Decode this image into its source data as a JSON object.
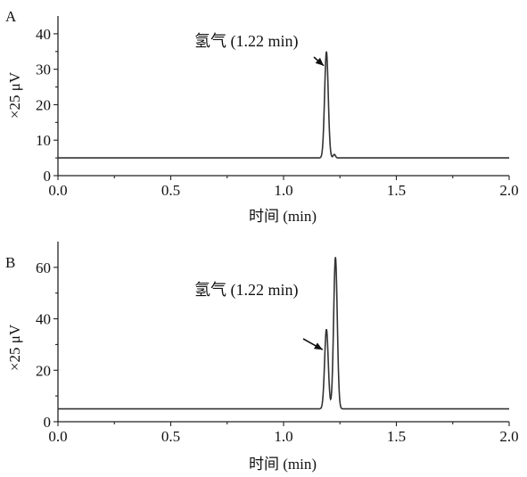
{
  "chart_data": [
    {
      "type": "line",
      "panel_label": "A",
      "xlabel": "时间 (min)",
      "ylabel": "×25 μV",
      "xlim": [
        0.0,
        2.0
      ],
      "ylim": [
        0,
        45
      ],
      "xticks": [
        0.0,
        0.5,
        1.0,
        1.5,
        2.0
      ],
      "xtick_labels": [
        "0.0",
        "0.5",
        "1.0",
        "1.5",
        "2.0"
      ],
      "yticks": [
        0,
        10,
        20,
        30,
        40
      ],
      "ytick_labels": [
        "0",
        "10",
        "20",
        "30",
        "40"
      ],
      "baseline": 5,
      "peaks": [
        {
          "x": 1.19,
          "height": 35,
          "width": 0.008
        },
        {
          "x": 1.225,
          "height": 6,
          "width": 0.005
        }
      ],
      "annotation": {
        "text": "氢气 (1.22 min)",
        "target_x": 1.19,
        "target_y": 31
      },
      "grid": false,
      "legend": "none"
    },
    {
      "type": "line",
      "panel_label": "B",
      "xlabel": "时间 (min)",
      "ylabel": "×25 μV",
      "xlim": [
        0.0,
        2.0
      ],
      "ylim": [
        0,
        70
      ],
      "xticks": [
        0.0,
        0.5,
        1.0,
        1.5,
        2.0
      ],
      "xtick_labels": [
        "0.0",
        "0.5",
        "1.0",
        "1.5",
        "2.0"
      ],
      "yticks": [
        0,
        20,
        40,
        60
      ],
      "ytick_labels": [
        "0",
        "20",
        "40",
        "60"
      ],
      "baseline": 5,
      "peaks": [
        {
          "x": 1.19,
          "height": 36,
          "width": 0.008
        },
        {
          "x": 1.23,
          "height": 64,
          "width": 0.008
        }
      ],
      "annotation": {
        "text": "氢气 (1.22 min)",
        "target_x": 1.185,
        "target_y": 28
      },
      "grid": false,
      "legend": "none"
    }
  ]
}
